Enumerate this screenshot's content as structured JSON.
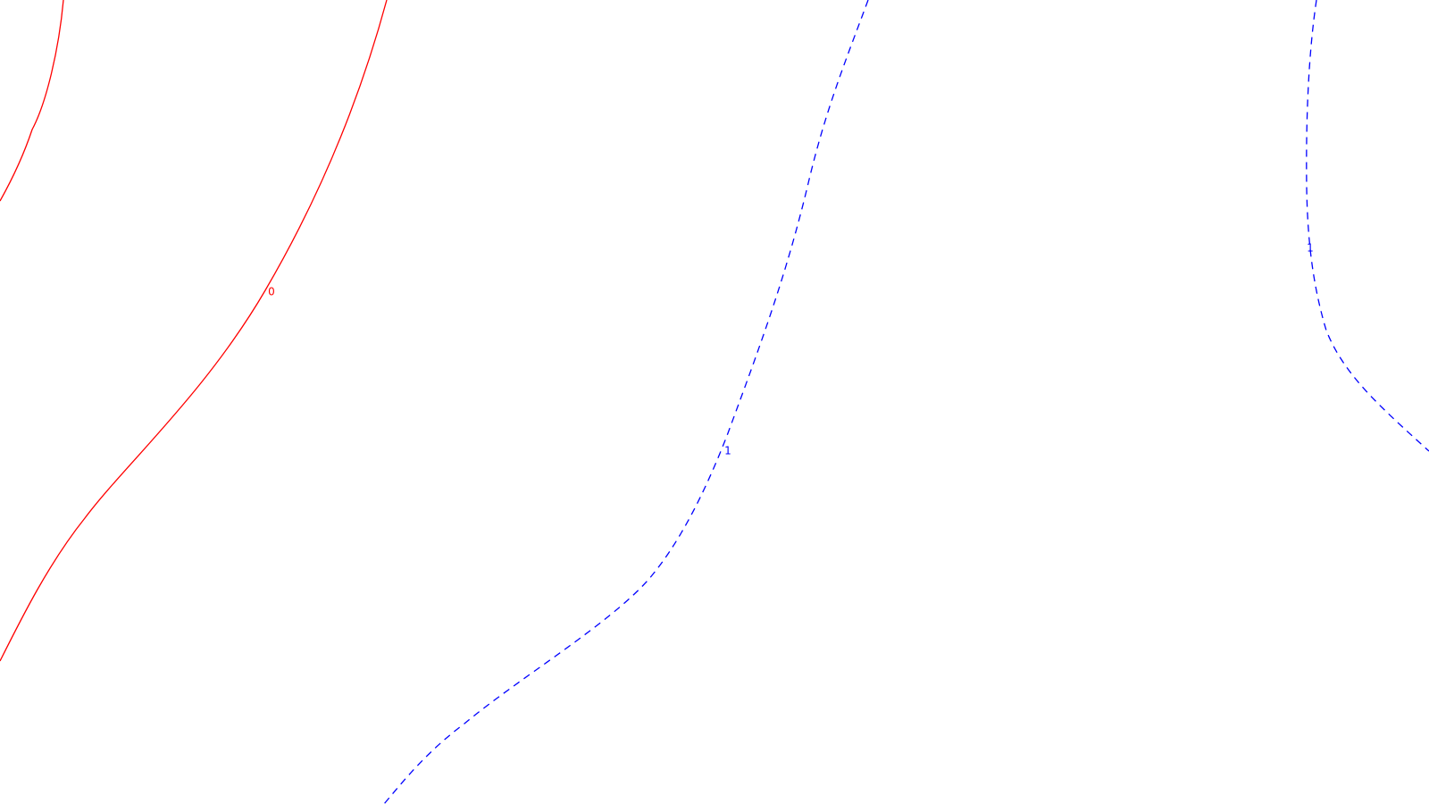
{
  "contours": [
    {
      "id": "red-arc-upper-left",
      "level_label": "",
      "color": "#ff0000",
      "style": "solid"
    },
    {
      "id": "red-contour-zero",
      "level_label": "0",
      "color": "#ff0000",
      "style": "solid"
    },
    {
      "id": "blue-contour-one-center",
      "level_label": "1",
      "color": "#0000ff",
      "style": "dashed"
    },
    {
      "id": "blue-contour-one-right",
      "level_label": "1",
      "color": "#0000ff",
      "style": "dashed"
    }
  ]
}
